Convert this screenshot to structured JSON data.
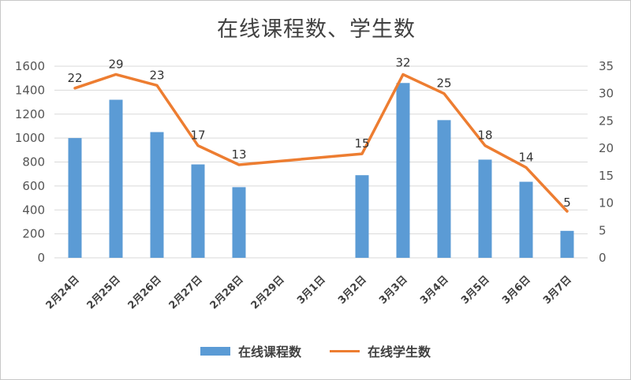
{
  "chart_data": {
    "type": "bar+line",
    "title": "在线课程数、学生数",
    "categories": [
      "2月24日",
      "2月25日",
      "2月26日",
      "2月27日",
      "2月28日",
      "2月29日",
      "3月1日",
      "3月2日",
      "3月3日",
      "3月4日",
      "3月5日",
      "3月6日",
      "3月7日"
    ],
    "series": [
      {
        "name": "在线课程数",
        "type": "bar",
        "axis": "left",
        "values": [
          1000,
          1320,
          1050,
          780,
          590,
          null,
          null,
          690,
          1460,
          1150,
          820,
          635,
          225
        ]
      },
      {
        "name": "在线学生数",
        "type": "line",
        "axis": "right",
        "values": [
          31,
          33.5,
          31.5,
          20.5,
          17,
          null,
          null,
          19,
          33.5,
          30,
          20.5,
          16.5,
          8.5
        ]
      }
    ],
    "data_labels": [
      "22",
      "29",
      "23",
      "17",
      "13",
      "",
      "",
      "15",
      "32",
      "25",
      "18",
      "14",
      "5"
    ],
    "y_left": {
      "min": 0,
      "max": 1600,
      "ticks": [
        "0",
        "200",
        "400",
        "600",
        "800",
        "1000",
        "1200",
        "1400",
        "1600"
      ]
    },
    "y_right": {
      "min": 0,
      "max": 35,
      "ticks": [
        "0",
        "5",
        "10",
        "15",
        "20",
        "25",
        "30",
        "35"
      ]
    },
    "legend_position": "bottom",
    "grid": true,
    "colors": {
      "bar": "#5b9bd5",
      "line": "#ed7d31",
      "grid": "#d9d9d9"
    }
  }
}
